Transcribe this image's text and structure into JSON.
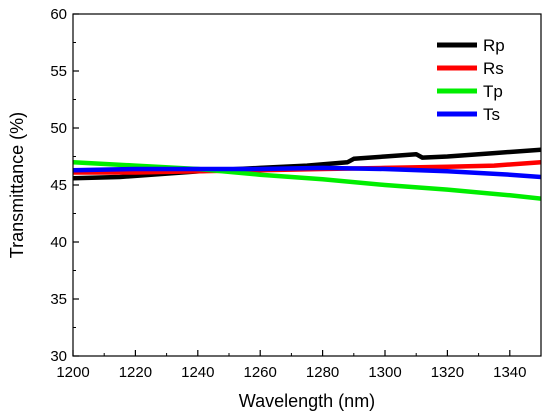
{
  "chart_data": {
    "type": "line",
    "xlabel": "Wavelength (nm)",
    "ylabel": "Transmittance (%)",
    "xlim": [
      1200,
      1350
    ],
    "ylim": [
      30,
      60
    ],
    "xticks": [
      1200,
      1220,
      1240,
      1260,
      1280,
      1300,
      1320,
      1340
    ],
    "yticks": [
      30,
      35,
      40,
      45,
      50,
      55,
      60
    ],
    "legend_position": "top-right",
    "grid": false,
    "series": [
      {
        "name": "Rp",
        "color": "#000000",
        "x": [
          1200,
          1215,
          1230,
          1245,
          1260,
          1275,
          1288,
          1290,
          1300,
          1310,
          1312,
          1320,
          1335,
          1350
        ],
        "y": [
          45.6,
          45.7,
          46.0,
          46.3,
          46.5,
          46.7,
          47.0,
          47.3,
          47.5,
          47.7,
          47.4,
          47.5,
          47.8,
          48.1
        ]
      },
      {
        "name": "Rs",
        "color": "#ff0000",
        "x": [
          1200,
          1220,
          1240,
          1260,
          1280,
          1300,
          1320,
          1335,
          1350
        ],
        "y": [
          46.1,
          46.1,
          46.2,
          46.3,
          46.4,
          46.5,
          46.6,
          46.7,
          47.0
        ]
      },
      {
        "name": "Tp",
        "color": "#00ee00",
        "x": [
          1200,
          1220,
          1240,
          1260,
          1280,
          1300,
          1320,
          1340,
          1350
        ],
        "y": [
          47.0,
          46.7,
          46.4,
          45.9,
          45.5,
          45.0,
          44.6,
          44.1,
          43.8
        ]
      },
      {
        "name": "Ts",
        "color": "#0000ff",
        "x": [
          1200,
          1220,
          1240,
          1260,
          1280,
          1300,
          1320,
          1340,
          1350
        ],
        "y": [
          46.3,
          46.4,
          46.4,
          46.4,
          46.5,
          46.4,
          46.2,
          45.9,
          45.7
        ]
      }
    ]
  }
}
